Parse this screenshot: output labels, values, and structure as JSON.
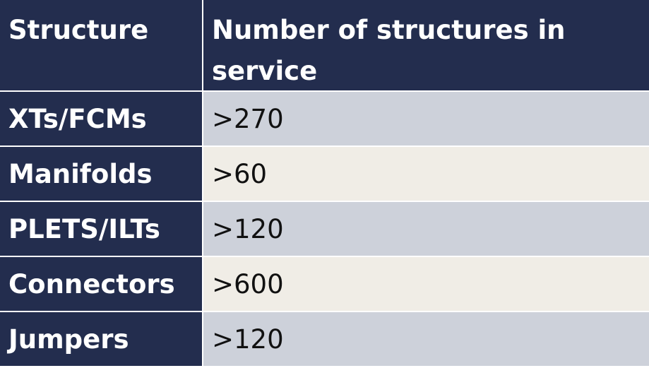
{
  "table": {
    "header": [
      "Structure",
      "Number of structures in service"
    ],
    "rows": [
      [
        "XTs/FCMs",
        ">270"
      ],
      [
        "Manifolds",
        ">60"
      ],
      [
        "PLETS/ILTs",
        ">120"
      ],
      [
        "Connectors",
        ">600"
      ],
      [
        "Jumpers",
        ">120"
      ]
    ]
  }
}
